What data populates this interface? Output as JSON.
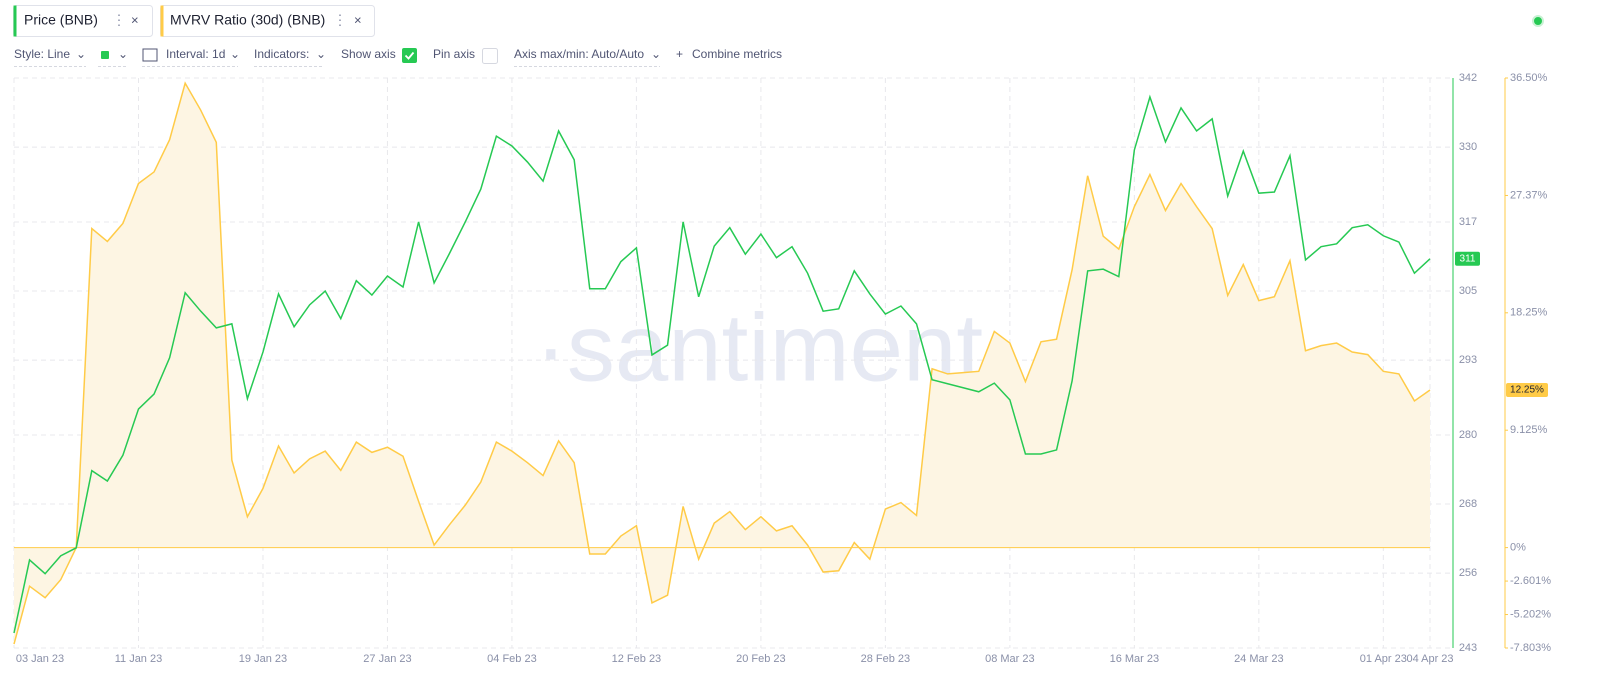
{
  "ui": {
    "toolbar": {
      "style": "Style: Line",
      "interval": "Interval: 1d",
      "indicators": "Indicators:",
      "show_axis": "Show axis",
      "pin_axis": "Pin axis",
      "axis_minmax": "Axis max/min: Auto/Auto",
      "combine": "Combine metrics"
    },
    "watermark": "·santiment·"
  },
  "chart_data": {
    "type": "line",
    "x": [
      "03 Jan 23",
      "04 Jan 23",
      "05 Jan 23",
      "06 Jan 23",
      "07 Jan 23",
      "08 Jan 23",
      "09 Jan 23",
      "10 Jan 23",
      "11 Jan 23",
      "12 Jan 23",
      "13 Jan 23",
      "14 Jan 23",
      "15 Jan 23",
      "16 Jan 23",
      "17 Jan 23",
      "18 Jan 23",
      "19 Jan 23",
      "20 Jan 23",
      "21 Jan 23",
      "22 Jan 23",
      "23 Jan 23",
      "24 Jan 23",
      "25 Jan 23",
      "26 Jan 23",
      "27 Jan 23",
      "28 Jan 23",
      "29 Jan 23",
      "30 Jan 23",
      "31 Jan 23",
      "01 Feb 23",
      "02 Feb 23",
      "03 Feb 23",
      "04 Feb 23",
      "05 Feb 23",
      "06 Feb 23",
      "07 Feb 23",
      "08 Feb 23",
      "09 Feb 23",
      "10 Feb 23",
      "11 Feb 23",
      "12 Feb 23",
      "13 Feb 23",
      "14 Feb 23",
      "15 Feb 23",
      "16 Feb 23",
      "17 Feb 23",
      "18 Feb 23",
      "19 Feb 23",
      "20 Feb 23",
      "21 Feb 23",
      "22 Feb 23",
      "23 Feb 23",
      "24 Feb 23",
      "25 Feb 23",
      "26 Feb 23",
      "27 Feb 23",
      "28 Feb 23",
      "01 Mar 23",
      "02 Mar 23",
      "03 Mar 23",
      "04 Mar 23",
      "05 Mar 23",
      "06 Mar 23",
      "07 Mar 23",
      "08 Mar 23",
      "09 Mar 23",
      "10 Mar 23",
      "11 Mar 23",
      "12 Mar 23",
      "13 Mar 23",
      "14 Mar 23",
      "15 Mar 23",
      "16 Mar 23",
      "17 Mar 23",
      "18 Mar 23",
      "19 Mar 23",
      "20 Mar 23",
      "21 Mar 23",
      "22 Mar 23",
      "23 Mar 23",
      "24 Mar 23",
      "25 Mar 23",
      "26 Mar 23",
      "27 Mar 23",
      "28 Mar 23",
      "29 Mar 23",
      "30 Mar 23",
      "31 Mar 23",
      "01 Apr 23",
      "02 Apr 23",
      "03 Apr 23",
      "04 Apr 23"
    ],
    "xticks": [
      "03 Jan 23",
      "11 Jan 23",
      "19 Jan 23",
      "27 Jan 23",
      "04 Feb 23",
      "12 Feb 23",
      "20 Feb 23",
      "28 Feb 23",
      "08 Mar 23",
      "16 Mar 23",
      "24 Mar 23",
      "01 Apr 23",
      "04 Apr 23"
    ],
    "ylim": [
      243,
      342
    ],
    "yticks": [
      243,
      256,
      268,
      280,
      293,
      305,
      317,
      330,
      342
    ],
    "y2lim": [
      -7.803,
      36.5
    ],
    "y2ticks": [
      {
        "value": -7.803,
        "label": "-7.803%"
      },
      {
        "value": -5.202,
        "label": "-5.202%"
      },
      {
        "value": -2.601,
        "label": "-2.601%"
      },
      {
        "value": 0,
        "label": "0%"
      },
      {
        "value": 9.125,
        "label": "9.125%"
      },
      {
        "value": 18.25,
        "label": "18.25%"
      },
      {
        "value": 27.37,
        "label": "27.37%"
      },
      {
        "value": 36.5,
        "label": "36.50%"
      }
    ],
    "grid": true,
    "series": [
      {
        "name": "Price (BNB)",
        "color": "#26c953",
        "axis": "y",
        "last_value_label": "311",
        "values": [
          245.6,
          258.3,
          255.9,
          259,
          260.4,
          273.8,
          272,
          276.5,
          284.5,
          287.1,
          293.4,
          304.7,
          301.5,
          298.6,
          299.3,
          286.3,
          294.4,
          304.5,
          298.8,
          302.6,
          305,
          300.2,
          306.8,
          304.3,
          307.6,
          305.7,
          317,
          306.4,
          311.6,
          317,
          322.7,
          331.9,
          330.2,
          327.4,
          324.1,
          332.8,
          327.8,
          305.4,
          305.4,
          310.1,
          312.5,
          293.9,
          295.6,
          317,
          304,
          312.8,
          316,
          311.4,
          314.9,
          310.8,
          312.7,
          308.1,
          301.5,
          301.9,
          308.5,
          304.5,
          301,
          302.4,
          299.3,
          289.6,
          288.9,
          288.2,
          287.5,
          289,
          286.1,
          276.7,
          276.7,
          277.4,
          289.4,
          308.5,
          308.8,
          307.5,
          329.5,
          338.7,
          330.9,
          336.8,
          332.8,
          334.9,
          321.5,
          329.3,
          322,
          322.2,
          328.5,
          310.4,
          312.7,
          313.2,
          316,
          316.5,
          314.6,
          313.5,
          308.1,
          310.6
        ]
      },
      {
        "name": "MVRV Ratio (30d) (BNB)",
        "color": "#ffcb47",
        "fill": "#fdf5e3",
        "axis": "y2",
        "last_value_label": "12.25%",
        "values": [
          -7.5,
          -3.0,
          -3.9,
          -2.5,
          0,
          24.8,
          23.8,
          25.2,
          28.3,
          29.2,
          31.7,
          36.1,
          34.0,
          31.5,
          6.8,
          2.4,
          4.6,
          7.9,
          5.8,
          6.9,
          7.5,
          6.0,
          8.2,
          7.4,
          7.8,
          7.1,
          3.6,
          0.2,
          1.8,
          3.3,
          5.1,
          8.2,
          7.5,
          6.6,
          5.6,
          8.3,
          6.6,
          -0.5,
          -0.5,
          0.9,
          1.7,
          -4.3,
          -3.7,
          3.2,
          -0.9,
          1.9,
          2.8,
          1.4,
          2.4,
          1.3,
          1.7,
          0.2,
          -1.9,
          -1.8,
          0.4,
          -0.9,
          3.0,
          3.5,
          2.5,
          13.9,
          13.5,
          13.6,
          13.7,
          16.8,
          15.9,
          12.9,
          16.0,
          16.2,
          21.6,
          28.9,
          24.2,
          23.2,
          26.5,
          29.0,
          26.2,
          28.3,
          26.5,
          24.8,
          19.6,
          22.0,
          19.2,
          19.5,
          22.3,
          15.3,
          15.7,
          15.9,
          15.2,
          15.0,
          13.7,
          13.5,
          11.4,
          12.25
        ]
      }
    ]
  }
}
